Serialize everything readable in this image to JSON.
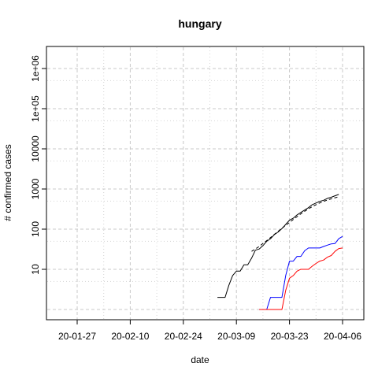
{
  "chart_data": {
    "type": "line",
    "title": "hungary",
    "xlabel": "date",
    "ylabel": "# confirmed cases",
    "y_scale": "log",
    "grid": true,
    "x_tick_labels": [
      "20-01-27",
      "20-02-10",
      "20-02-24",
      "20-03-09",
      "20-03-23",
      "20-04-06"
    ],
    "y_tick_labels": [
      "10",
      "100",
      "1000",
      "10000",
      "1e+05",
      "1e+06"
    ],
    "series": [
      {
        "color": "#000000",
        "dash": "solid",
        "points": [
          [
            "2020-03-04",
            2
          ],
          [
            "2020-03-05",
            2
          ],
          [
            "2020-03-06",
            2
          ],
          [
            "2020-03-07",
            4
          ],
          [
            "2020-03-08",
            7
          ],
          [
            "2020-03-09",
            9
          ],
          [
            "2020-03-10",
            9
          ],
          [
            "2020-03-11",
            13
          ],
          [
            "2020-03-12",
            13
          ],
          [
            "2020-03-13",
            19
          ],
          [
            "2020-03-14",
            30
          ],
          [
            "2020-03-15",
            32
          ],
          [
            "2020-03-16",
            39
          ],
          [
            "2020-03-17",
            50
          ],
          [
            "2020-03-18",
            58
          ],
          [
            "2020-03-19",
            73
          ],
          [
            "2020-03-20",
            85
          ],
          [
            "2020-03-21",
            103
          ],
          [
            "2020-03-22",
            131
          ],
          [
            "2020-03-23",
            167
          ],
          [
            "2020-03-24",
            187
          ],
          [
            "2020-03-25",
            226
          ],
          [
            "2020-03-26",
            261
          ],
          [
            "2020-03-27",
            300
          ],
          [
            "2020-03-28",
            343
          ],
          [
            "2020-03-29",
            408
          ],
          [
            "2020-03-30",
            447
          ],
          [
            "2020-03-31",
            492
          ],
          [
            "2020-04-01",
            525
          ],
          [
            "2020-04-02",
            585
          ],
          [
            "2020-04-03",
            623
          ],
          [
            "2020-04-04",
            678
          ],
          [
            "2020-04-05",
            733
          ]
        ]
      },
      {
        "color": "#000000",
        "dash": "dashed",
        "points": [
          [
            "2020-03-13",
            28
          ],
          [
            "2020-03-14",
            32
          ],
          [
            "2020-03-15",
            37
          ],
          [
            "2020-03-16",
            44
          ],
          [
            "2020-03-17",
            52
          ],
          [
            "2020-03-18",
            62
          ],
          [
            "2020-03-19",
            74
          ],
          [
            "2020-03-20",
            88
          ],
          [
            "2020-03-21",
            105
          ],
          [
            "2020-03-22",
            124
          ],
          [
            "2020-03-23",
            147
          ],
          [
            "2020-03-24",
            174
          ],
          [
            "2020-03-25",
            205
          ],
          [
            "2020-03-26",
            240
          ],
          [
            "2020-03-27",
            279
          ],
          [
            "2020-03-28",
            320
          ],
          [
            "2020-03-29",
            363
          ],
          [
            "2020-03-30",
            407
          ],
          [
            "2020-03-31",
            450
          ],
          [
            "2020-04-01",
            492
          ],
          [
            "2020-04-02",
            532
          ],
          [
            "2020-04-03",
            570
          ],
          [
            "2020-04-04",
            606
          ],
          [
            "2020-04-05",
            640
          ]
        ]
      },
      {
        "color": "#0000ff",
        "dash": "solid",
        "points": [
          [
            "2020-03-15",
            1
          ],
          [
            "2020-03-16",
            1
          ],
          [
            "2020-03-17",
            1
          ],
          [
            "2020-03-18",
            2
          ],
          [
            "2020-03-19",
            2
          ],
          [
            "2020-03-20",
            2
          ],
          [
            "2020-03-21",
            2
          ],
          [
            "2020-03-22",
            7
          ],
          [
            "2020-03-23",
            16
          ],
          [
            "2020-03-24",
            16
          ],
          [
            "2020-03-25",
            21
          ],
          [
            "2020-03-26",
            21
          ],
          [
            "2020-03-27",
            29
          ],
          [
            "2020-03-28",
            34
          ],
          [
            "2020-03-29",
            34
          ],
          [
            "2020-03-30",
            34
          ],
          [
            "2020-03-31",
            34
          ],
          [
            "2020-04-01",
            37
          ],
          [
            "2020-04-02",
            40
          ],
          [
            "2020-04-03",
            43
          ],
          [
            "2020-04-04",
            44
          ],
          [
            "2020-04-05",
            58
          ],
          [
            "2020-04-06",
            66
          ]
        ]
      },
      {
        "color": "#ff0000",
        "dash": "solid",
        "points": [
          [
            "2020-03-15",
            1
          ],
          [
            "2020-03-16",
            1
          ],
          [
            "2020-03-17",
            1
          ],
          [
            "2020-03-18",
            1
          ],
          [
            "2020-03-19",
            1
          ],
          [
            "2020-03-20",
            1
          ],
          [
            "2020-03-21",
            1
          ],
          [
            "2020-03-22",
            3
          ],
          [
            "2020-03-23",
            6
          ],
          [
            "2020-03-24",
            7
          ],
          [
            "2020-03-25",
            9
          ],
          [
            "2020-03-26",
            10
          ],
          [
            "2020-03-27",
            10
          ],
          [
            "2020-03-28",
            10
          ],
          [
            "2020-03-29",
            12
          ],
          [
            "2020-03-30",
            14
          ],
          [
            "2020-03-31",
            16
          ],
          [
            "2020-04-01",
            17
          ],
          [
            "2020-04-02",
            20
          ],
          [
            "2020-04-03",
            22
          ],
          [
            "2020-04-04",
            28
          ],
          [
            "2020-04-05",
            33
          ],
          [
            "2020-04-06",
            34
          ]
        ]
      }
    ]
  }
}
